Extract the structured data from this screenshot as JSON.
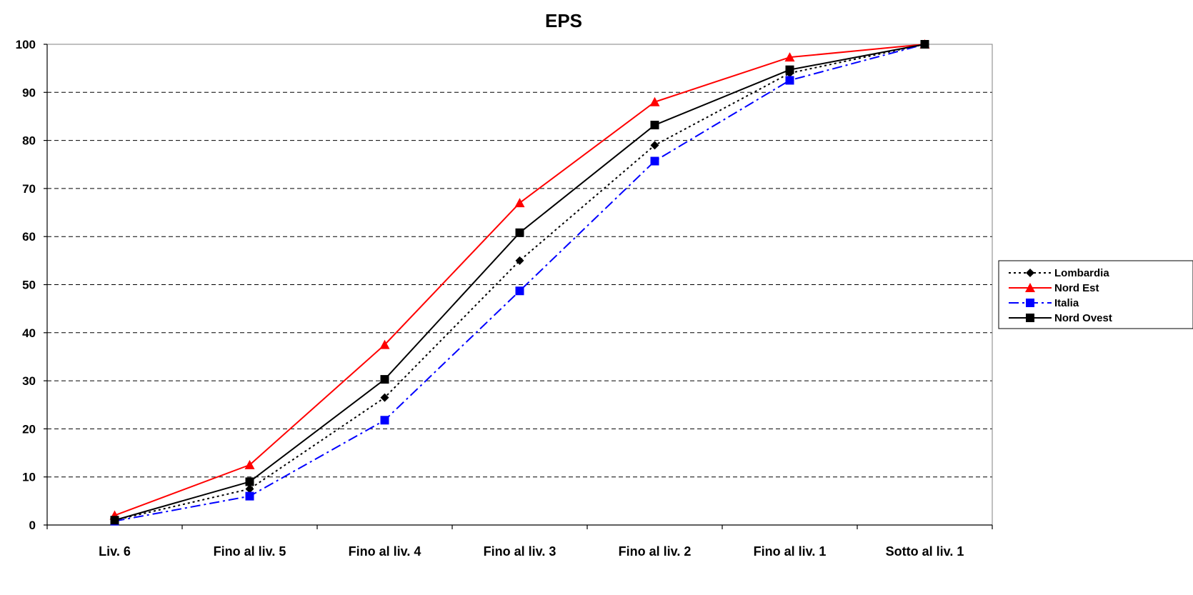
{
  "chart_data": {
    "type": "line",
    "title": "EPS",
    "xlabel": "",
    "ylabel": "",
    "categories": [
      "Liv. 6",
      "Fino al liv. 5",
      "Fino al liv. 4",
      "Fino al liv. 3",
      "Fino al liv. 2",
      "Fino al liv. 1",
      "Sotto al liv. 1"
    ],
    "ylim": [
      0,
      100
    ],
    "yticks": [
      0,
      10,
      20,
      30,
      40,
      50,
      60,
      70,
      80,
      90,
      100
    ],
    "grid": "horizontal dashed",
    "legend_position": "right",
    "series": [
      {
        "name": "Lombardia",
        "color": "#000000",
        "line_style": "dotted",
        "marker": "diamond",
        "values": [
          1,
          7.5,
          26.5,
          55,
          79,
          94,
          100
        ]
      },
      {
        "name": "Nord Est",
        "color": "#ff0000",
        "line_style": "solid",
        "marker": "triangle",
        "values": [
          2,
          12.5,
          37.5,
          67,
          88,
          97.3,
          100
        ]
      },
      {
        "name": "Italia",
        "color": "#0000ff",
        "line_style": "dash-dot",
        "marker": "square",
        "values": [
          0.8,
          6,
          21.8,
          48.7,
          75.7,
          92.5,
          100
        ]
      },
      {
        "name": "Nord Ovest",
        "color": "#000000",
        "line_style": "solid",
        "marker": "square",
        "values": [
          1,
          9,
          30.3,
          60.8,
          83.2,
          94.7,
          100
        ]
      }
    ]
  }
}
